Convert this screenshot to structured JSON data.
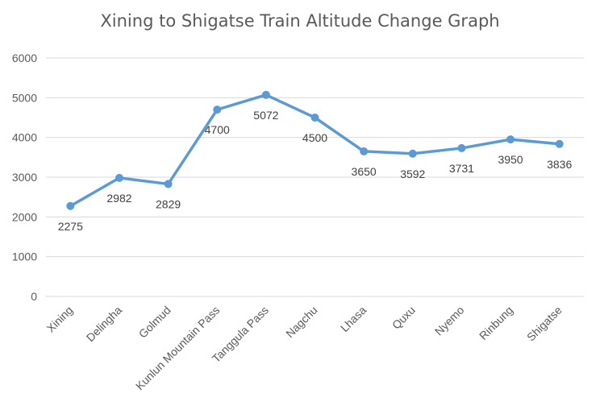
{
  "chart_data": {
    "type": "line",
    "title": "Xining to Shigatse Train Altitude Change Graph",
    "xlabel": "",
    "ylabel": "",
    "categories": [
      "Xining",
      "Delingha",
      "Golmud",
      "Kunlun Mountain Pass",
      "Tanggula Pass",
      "Nagchu",
      "Lhasa",
      "Quxu",
      "Nyemo",
      "Rinbung",
      "Shigatse"
    ],
    "series": [
      {
        "values": [
          2275,
          2982,
          2829,
          4700,
          5072,
          4500,
          3650,
          3592,
          3731,
          3950,
          3836
        ]
      }
    ],
    "ylim": [
      0,
      6000
    ],
    "yticks": [
      0,
      1000,
      2000,
      3000,
      4000,
      5000,
      6000
    ],
    "grid": true,
    "legend": "none",
    "data_labels": true,
    "colors": {
      "line": "#5B9BD5",
      "grid": "#D9D9D9",
      "text": "#404040",
      "axis_text": "#595959"
    }
  }
}
